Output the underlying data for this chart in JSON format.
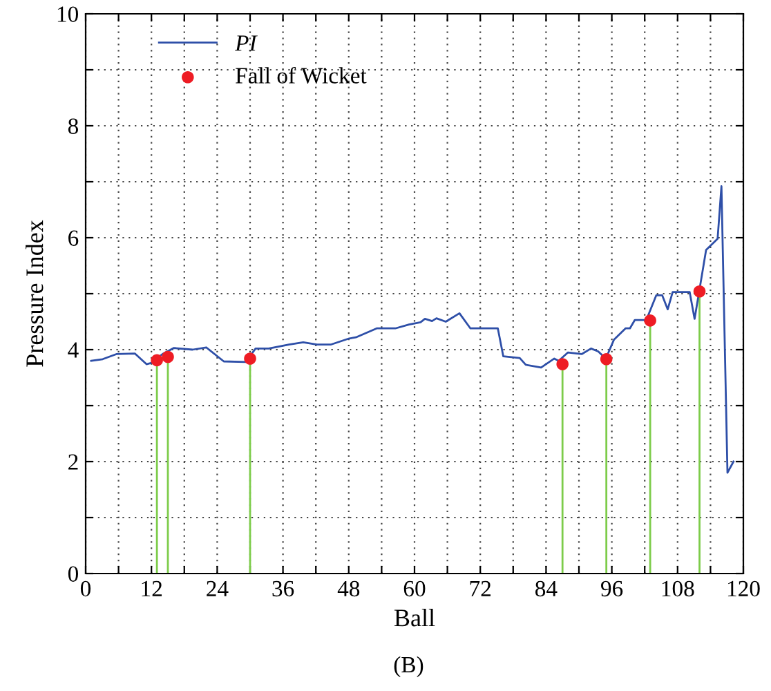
{
  "chart_data": {
    "type": "line",
    "xlabel": "Ball",
    "ylabel": "Pressure Index",
    "annotations": [
      "(B)"
    ],
    "xlim": [
      0,
      120
    ],
    "ylim": [
      0,
      10
    ],
    "xticks": [
      0,
      {
        "value": 6,
        "label": null
      },
      12,
      {
        "value": 18,
        "label": null
      },
      24,
      {
        "value": 30,
        "label": null
      },
      36,
      {
        "value": 42,
        "label": null
      },
      48,
      {
        "value": 54,
        "label": null
      },
      60,
      {
        "value": 66,
        "label": null
      },
      72,
      {
        "value": 78,
        "label": null
      },
      84,
      {
        "value": 90,
        "label": null
      },
      96,
      {
        "value": 102,
        "label": null
      },
      108,
      {
        "value": 114,
        "label": null
      },
      120
    ],
    "yticks": [
      0,
      {
        "value": 1,
        "label": null
      },
      2,
      {
        "value": 3,
        "label": null
      },
      4,
      {
        "value": 5,
        "label": null
      },
      6,
      {
        "value": 7,
        "label": null
      },
      8,
      {
        "value": 9,
        "label": null
      },
      10
    ],
    "grid": true,
    "legend": "top left",
    "series": [
      {
        "name": "PI",
        "color": "#2e4fa8",
        "marker": "none",
        "x": [
          1,
          3.1,
          5.6,
          9,
          11.1,
          11.9,
          14,
          16.1,
          19.5,
          22,
          25.2,
          29.2,
          31,
          33.4,
          37.1,
          39.7,
          42.2,
          44.7,
          48.1,
          49.3,
          53.1,
          56.5,
          59,
          61.1,
          61.9,
          63.2,
          64,
          65.7,
          68.2,
          70.2,
          75.2,
          76.2,
          79.2,
          80.3,
          83.1,
          85.5,
          86.3,
          88,
          90.5,
          92.2,
          93.5,
          94.9,
          96.4,
          98.5,
          99.3,
          100.2,
          102.3,
          104.1,
          105.2,
          106.2,
          107.1,
          110.2,
          111.1,
          113.2,
          115.3,
          116,
          117.1,
          118.2
        ],
        "values": [
          3.8,
          3.83,
          3.92,
          3.93,
          3.74,
          3.76,
          3.92,
          4.03,
          4.0,
          4.04,
          3.79,
          3.78,
          4.02,
          4.02,
          4.09,
          4.13,
          4.09,
          4.09,
          4.2,
          4.22,
          4.38,
          4.38,
          4.45,
          4.49,
          4.55,
          4.51,
          4.56,
          4.5,
          4.65,
          4.38,
          4.38,
          3.88,
          3.85,
          3.73,
          3.68,
          3.84,
          3.8,
          3.95,
          3.92,
          4.02,
          3.97,
          3.84,
          4.18,
          4.38,
          4.38,
          4.53,
          4.53,
          4.97,
          4.97,
          4.72,
          5.03,
          5.03,
          4.55,
          5.78,
          5.98,
          6.92,
          1.8,
          2.0
        ]
      },
      {
        "name": "Fall of Wicket",
        "type": "lollipop",
        "color": "#ee1c24",
        "marker": "circle",
        "x": [
          13,
          15,
          30,
          87,
          95,
          103,
          112
        ],
        "values": [
          3.81,
          3.87,
          3.84,
          3.74,
          3.83,
          4.52,
          5.04
        ]
      }
    ]
  }
}
